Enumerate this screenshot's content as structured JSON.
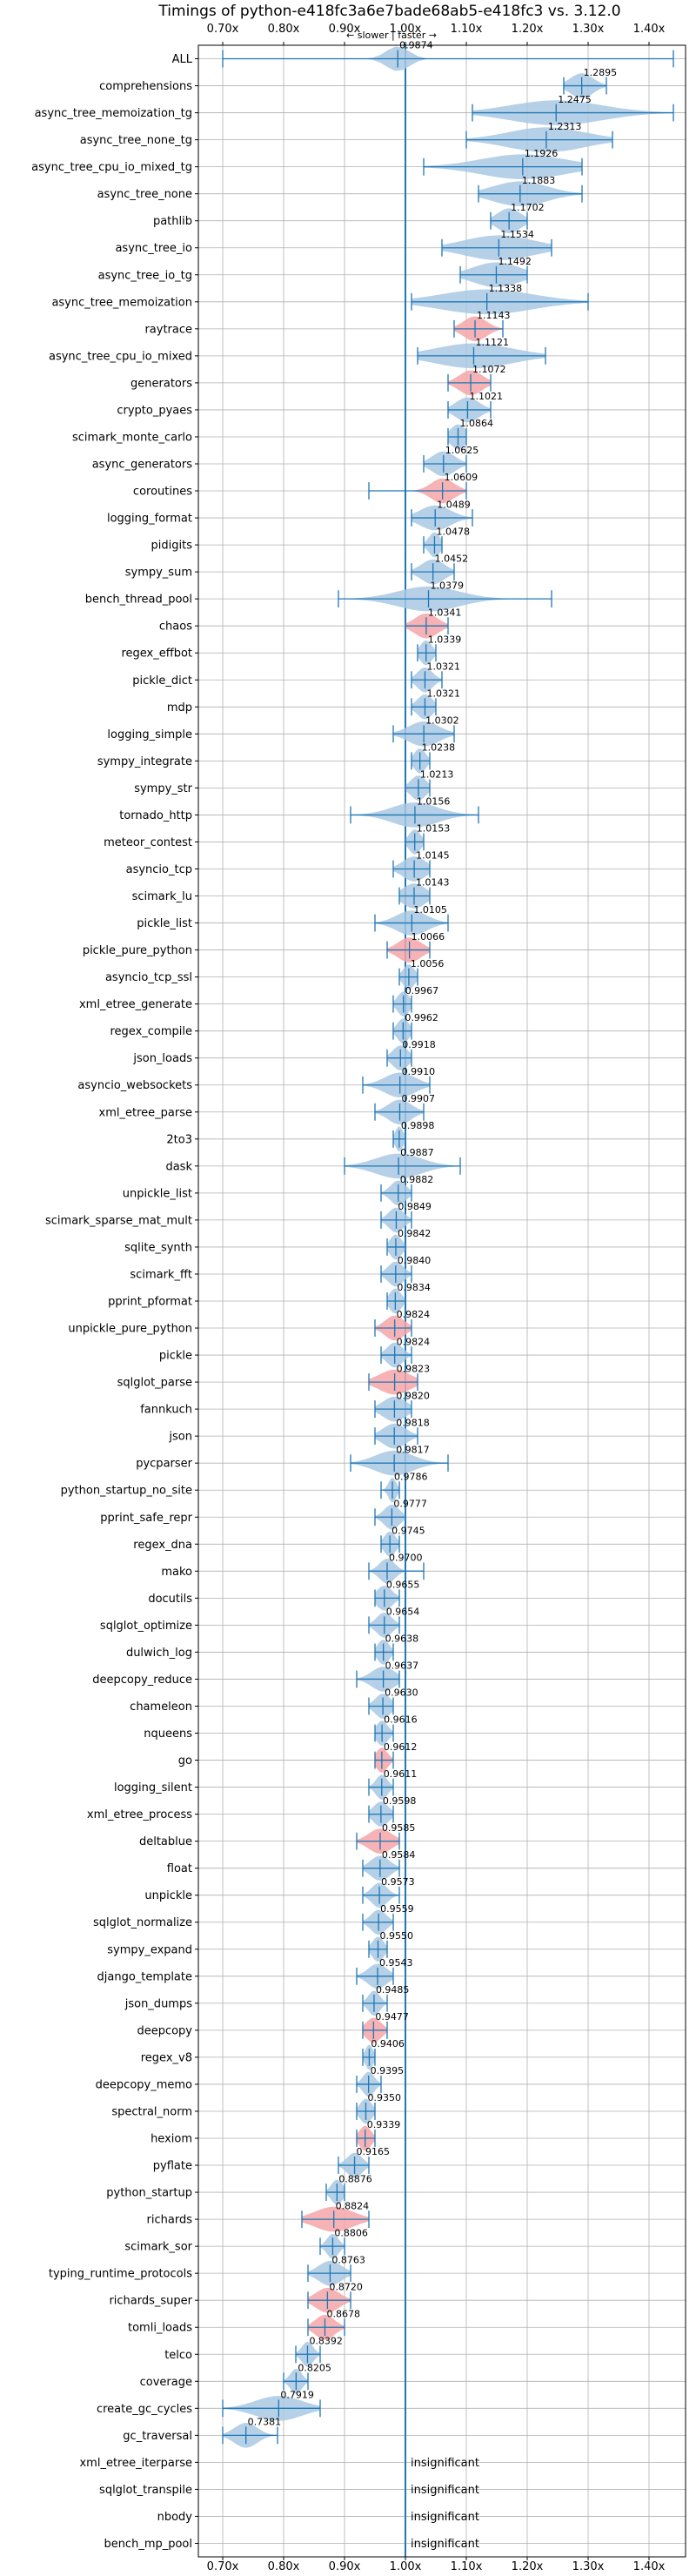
{
  "chart_data": {
    "type": "violin",
    "title": "Timings of python-e418fc3a6e7bade68ab5-e418fc3 vs. 3.12.0",
    "direction_label": "← slower | faster →",
    "xlim": [
      0.66,
      1.46
    ],
    "xticks": [
      0.7,
      0.8,
      0.9,
      1.0,
      1.1,
      1.2,
      1.3,
      1.4
    ],
    "xtick_labels": [
      "0.70x",
      "0.80x",
      "0.90x",
      "1.00x",
      "1.10x",
      "1.20x",
      "1.30x",
      "1.40x"
    ],
    "reference_line": 1.0,
    "insignificant_label": "insignificant",
    "colors": {
      "normal": "#a8c8e3",
      "highlight": "#f4a4a8",
      "line": "#1f77b4"
    },
    "benchmarks": [
      {
        "name": "ALL",
        "value": 0.9874,
        "min": 0.7,
        "max": 1.44,
        "spread": 0.03,
        "color": "normal"
      },
      {
        "name": "comprehensions",
        "value": 1.2895,
        "min": 1.26,
        "max": 1.33,
        "spread": 0.03,
        "color": "normal"
      },
      {
        "name": "async_tree_memoization_tg",
        "value": 1.2475,
        "min": 1.11,
        "max": 1.44,
        "spread": 0.12,
        "color": "normal"
      },
      {
        "name": "async_tree_none_tg",
        "value": 1.2313,
        "min": 1.1,
        "max": 1.34,
        "spread": 0.1,
        "color": "normal"
      },
      {
        "name": "async_tree_cpu_io_mixed_tg",
        "value": 1.1926,
        "min": 1.03,
        "max": 1.29,
        "spread": 0.11,
        "color": "normal"
      },
      {
        "name": "async_tree_none",
        "value": 1.1883,
        "min": 1.12,
        "max": 1.29,
        "spread": 0.07,
        "color": "normal"
      },
      {
        "name": "pathlib",
        "value": 1.1702,
        "min": 1.14,
        "max": 1.2,
        "spread": 0.03,
        "color": "normal"
      },
      {
        "name": "async_tree_io",
        "value": 1.1534,
        "min": 1.06,
        "max": 1.24,
        "spread": 0.09,
        "color": "normal"
      },
      {
        "name": "async_tree_io_tg",
        "value": 1.1492,
        "min": 1.09,
        "max": 1.2,
        "spread": 0.06,
        "color": "normal"
      },
      {
        "name": "async_tree_memoization",
        "value": 1.1338,
        "min": 1.01,
        "max": 1.3,
        "spread": 0.12,
        "color": "normal"
      },
      {
        "name": "raytrace",
        "value": 1.1143,
        "min": 1.08,
        "max": 1.16,
        "spread": 0.03,
        "color": "highlight"
      },
      {
        "name": "async_tree_cpu_io_mixed",
        "value": 1.1121,
        "min": 1.02,
        "max": 1.23,
        "spread": 0.1,
        "color": "normal"
      },
      {
        "name": "generators",
        "value": 1.1072,
        "min": 1.07,
        "max": 1.14,
        "spread": 0.03,
        "color": "highlight"
      },
      {
        "name": "crypto_pyaes",
        "value": 1.1021,
        "min": 1.07,
        "max": 1.14,
        "spread": 0.03,
        "color": "normal"
      },
      {
        "name": "scimark_monte_carlo",
        "value": 1.0864,
        "min": 1.07,
        "max": 1.1,
        "spread": 0.02,
        "color": "normal"
      },
      {
        "name": "async_generators",
        "value": 1.0625,
        "min": 1.03,
        "max": 1.1,
        "spread": 0.03,
        "color": "normal"
      },
      {
        "name": "coroutines",
        "value": 1.0609,
        "min": 0.94,
        "max": 1.1,
        "spread": 0.03,
        "color": "highlight"
      },
      {
        "name": "logging_format",
        "value": 1.0489,
        "min": 1.01,
        "max": 1.11,
        "spread": 0.04,
        "color": "normal"
      },
      {
        "name": "pidigits",
        "value": 1.0478,
        "min": 1.03,
        "max": 1.06,
        "spread": 0.015,
        "color": "normal"
      },
      {
        "name": "sympy_sum",
        "value": 1.0452,
        "min": 1.01,
        "max": 1.08,
        "spread": 0.03,
        "color": "normal"
      },
      {
        "name": "bench_thread_pool",
        "value": 1.0379,
        "min": 0.89,
        "max": 1.24,
        "spread": 0.08,
        "color": "normal"
      },
      {
        "name": "chaos",
        "value": 1.0341,
        "min": 1.0,
        "max": 1.07,
        "spread": 0.03,
        "color": "highlight"
      },
      {
        "name": "regex_effbot",
        "value": 1.0339,
        "min": 1.02,
        "max": 1.05,
        "spread": 0.015,
        "color": "normal"
      },
      {
        "name": "pickle_dict",
        "value": 1.0321,
        "min": 1.01,
        "max": 1.06,
        "spread": 0.02,
        "color": "normal"
      },
      {
        "name": "mdp",
        "value": 1.0321,
        "min": 1.01,
        "max": 1.05,
        "spread": 0.02,
        "color": "normal"
      },
      {
        "name": "logging_simple",
        "value": 1.0302,
        "min": 0.98,
        "max": 1.08,
        "spread": 0.04,
        "color": "normal"
      },
      {
        "name": "sympy_integrate",
        "value": 1.0238,
        "min": 1.01,
        "max": 1.04,
        "spread": 0.015,
        "color": "normal"
      },
      {
        "name": "sympy_str",
        "value": 1.0213,
        "min": 1.0,
        "max": 1.04,
        "spread": 0.02,
        "color": "normal"
      },
      {
        "name": "tornado_http",
        "value": 1.0156,
        "min": 0.91,
        "max": 1.12,
        "spread": 0.06,
        "color": "normal"
      },
      {
        "name": "meteor_contest",
        "value": 1.0153,
        "min": 1.0,
        "max": 1.03,
        "spread": 0.015,
        "color": "normal"
      },
      {
        "name": "asyncio_tcp",
        "value": 1.0145,
        "min": 0.98,
        "max": 1.04,
        "spread": 0.03,
        "color": "normal"
      },
      {
        "name": "scimark_lu",
        "value": 1.0143,
        "min": 0.99,
        "max": 1.04,
        "spread": 0.03,
        "color": "normal"
      },
      {
        "name": "pickle_list",
        "value": 1.0105,
        "min": 0.95,
        "max": 1.07,
        "spread": 0.04,
        "color": "normal"
      },
      {
        "name": "pickle_pure_python",
        "value": 1.0066,
        "min": 0.97,
        "max": 1.04,
        "spread": 0.03,
        "color": "highlight"
      },
      {
        "name": "asyncio_tcp_ssl",
        "value": 1.0056,
        "min": 0.99,
        "max": 1.02,
        "spread": 0.015,
        "color": "normal"
      },
      {
        "name": "xml_etree_generate",
        "value": 0.9967,
        "min": 0.98,
        "max": 1.01,
        "spread": 0.015,
        "color": "normal"
      },
      {
        "name": "regex_compile",
        "value": 0.9962,
        "min": 0.98,
        "max": 1.01,
        "spread": 0.015,
        "color": "normal"
      },
      {
        "name": "json_loads",
        "value": 0.9918,
        "min": 0.97,
        "max": 1.01,
        "spread": 0.02,
        "color": "normal"
      },
      {
        "name": "asyncio_websockets",
        "value": 0.991,
        "min": 0.93,
        "max": 1.04,
        "spread": 0.04,
        "color": "normal"
      },
      {
        "name": "xml_etree_parse",
        "value": 0.9907,
        "min": 0.95,
        "max": 1.03,
        "spread": 0.03,
        "color": "normal"
      },
      {
        "name": "2to3",
        "value": 0.9898,
        "min": 0.98,
        "max": 1.0,
        "spread": 0.01,
        "color": "normal"
      },
      {
        "name": "dask",
        "value": 0.9887,
        "min": 0.9,
        "max": 1.09,
        "spread": 0.06,
        "color": "normal"
      },
      {
        "name": "unpickle_list",
        "value": 0.9882,
        "min": 0.96,
        "max": 1.01,
        "spread": 0.02,
        "color": "normal"
      },
      {
        "name": "scimark_sparse_mat_mult",
        "value": 0.9849,
        "min": 0.96,
        "max": 1.01,
        "spread": 0.02,
        "color": "normal"
      },
      {
        "name": "sqlite_synth",
        "value": 0.9842,
        "min": 0.97,
        "max": 1.0,
        "spread": 0.015,
        "color": "normal"
      },
      {
        "name": "scimark_fft",
        "value": 0.984,
        "min": 0.96,
        "max": 1.01,
        "spread": 0.02,
        "color": "normal"
      },
      {
        "name": "pprint_pformat",
        "value": 0.9834,
        "min": 0.97,
        "max": 1.0,
        "spread": 0.015,
        "color": "normal"
      },
      {
        "name": "unpickle_pure_python",
        "value": 0.9824,
        "min": 0.95,
        "max": 1.01,
        "spread": 0.025,
        "color": "highlight"
      },
      {
        "name": "pickle",
        "value": 0.9824,
        "min": 0.96,
        "max": 1.01,
        "spread": 0.02,
        "color": "normal"
      },
      {
        "name": "sqlglot_parse",
        "value": 0.9823,
        "min": 0.94,
        "max": 1.02,
        "spread": 0.04,
        "color": "highlight"
      },
      {
        "name": "fannkuch",
        "value": 0.982,
        "min": 0.95,
        "max": 1.01,
        "spread": 0.03,
        "color": "normal"
      },
      {
        "name": "json",
        "value": 0.9818,
        "min": 0.95,
        "max": 1.02,
        "spread": 0.03,
        "color": "normal"
      },
      {
        "name": "pycparser",
        "value": 0.9817,
        "min": 0.91,
        "max": 1.07,
        "spread": 0.05,
        "color": "normal"
      },
      {
        "name": "python_startup_no_site",
        "value": 0.9786,
        "min": 0.96,
        "max": 0.99,
        "spread": 0.01,
        "color": "normal"
      },
      {
        "name": "pprint_safe_repr",
        "value": 0.9777,
        "min": 0.95,
        "max": 1.0,
        "spread": 0.02,
        "color": "normal"
      },
      {
        "name": "regex_dna",
        "value": 0.9745,
        "min": 0.96,
        "max": 0.99,
        "spread": 0.015,
        "color": "normal"
      },
      {
        "name": "mako",
        "value": 0.97,
        "min": 0.94,
        "max": 1.03,
        "spread": 0.02,
        "color": "normal"
      },
      {
        "name": "docutils",
        "value": 0.9655,
        "min": 0.95,
        "max": 0.99,
        "spread": 0.02,
        "color": "normal"
      },
      {
        "name": "sqlglot_optimize",
        "value": 0.9654,
        "min": 0.94,
        "max": 0.99,
        "spread": 0.02,
        "color": "normal"
      },
      {
        "name": "dulwich_log",
        "value": 0.9638,
        "min": 0.95,
        "max": 0.98,
        "spread": 0.015,
        "color": "normal"
      },
      {
        "name": "deepcopy_reduce",
        "value": 0.9637,
        "min": 0.92,
        "max": 0.99,
        "spread": 0.03,
        "color": "normal"
      },
      {
        "name": "chameleon",
        "value": 0.963,
        "min": 0.94,
        "max": 0.98,
        "spread": 0.02,
        "color": "normal"
      },
      {
        "name": "nqueens",
        "value": 0.9616,
        "min": 0.95,
        "max": 0.98,
        "spread": 0.015,
        "color": "normal"
      },
      {
        "name": "go",
        "value": 0.9612,
        "min": 0.95,
        "max": 0.98,
        "spread": 0.015,
        "color": "highlight"
      },
      {
        "name": "logging_silent",
        "value": 0.9611,
        "min": 0.94,
        "max": 0.98,
        "spread": 0.015,
        "color": "normal"
      },
      {
        "name": "xml_etree_process",
        "value": 0.9598,
        "min": 0.94,
        "max": 0.98,
        "spread": 0.02,
        "color": "normal"
      },
      {
        "name": "deltablue",
        "value": 0.9585,
        "min": 0.92,
        "max": 0.99,
        "spread": 0.03,
        "color": "highlight"
      },
      {
        "name": "float",
        "value": 0.9584,
        "min": 0.93,
        "max": 0.99,
        "spread": 0.025,
        "color": "normal"
      },
      {
        "name": "unpickle",
        "value": 0.9573,
        "min": 0.93,
        "max": 0.99,
        "spread": 0.02,
        "color": "normal"
      },
      {
        "name": "sqlglot_normalize",
        "value": 0.9559,
        "min": 0.93,
        "max": 0.98,
        "spread": 0.02,
        "color": "normal"
      },
      {
        "name": "sympy_expand",
        "value": 0.955,
        "min": 0.94,
        "max": 0.97,
        "spread": 0.015,
        "color": "normal"
      },
      {
        "name": "django_template",
        "value": 0.9543,
        "min": 0.92,
        "max": 0.98,
        "spread": 0.025,
        "color": "normal"
      },
      {
        "name": "json_dumps",
        "value": 0.9485,
        "min": 0.93,
        "max": 0.97,
        "spread": 0.015,
        "color": "normal"
      },
      {
        "name": "deepcopy",
        "value": 0.9477,
        "min": 0.93,
        "max": 0.97,
        "spread": 0.02,
        "color": "highlight"
      },
      {
        "name": "regex_v8",
        "value": 0.9406,
        "min": 0.93,
        "max": 0.95,
        "spread": 0.01,
        "color": "normal"
      },
      {
        "name": "deepcopy_memo",
        "value": 0.9395,
        "min": 0.92,
        "max": 0.96,
        "spread": 0.015,
        "color": "normal"
      },
      {
        "name": "spectral_norm",
        "value": 0.935,
        "min": 0.92,
        "max": 0.95,
        "spread": 0.015,
        "color": "normal"
      },
      {
        "name": "hexiom",
        "value": 0.9339,
        "min": 0.92,
        "max": 0.95,
        "spread": 0.015,
        "color": "highlight"
      },
      {
        "name": "pyflate",
        "value": 0.9165,
        "min": 0.89,
        "max": 0.94,
        "spread": 0.02,
        "color": "normal"
      },
      {
        "name": "python_startup",
        "value": 0.8876,
        "min": 0.87,
        "max": 0.9,
        "spread": 0.015,
        "color": "normal"
      },
      {
        "name": "richards",
        "value": 0.8824,
        "min": 0.83,
        "max": 0.94,
        "spread": 0.05,
        "color": "highlight"
      },
      {
        "name": "scimark_sor",
        "value": 0.8806,
        "min": 0.86,
        "max": 0.9,
        "spread": 0.015,
        "color": "normal"
      },
      {
        "name": "typing_runtime_protocols",
        "value": 0.8763,
        "min": 0.84,
        "max": 0.91,
        "spread": 0.03,
        "color": "normal"
      },
      {
        "name": "richards_super",
        "value": 0.872,
        "min": 0.84,
        "max": 0.91,
        "spread": 0.03,
        "color": "highlight"
      },
      {
        "name": "tomli_loads",
        "value": 0.8678,
        "min": 0.84,
        "max": 0.9,
        "spread": 0.025,
        "color": "highlight"
      },
      {
        "name": "telco",
        "value": 0.8392,
        "min": 0.82,
        "max": 0.86,
        "spread": 0.015,
        "color": "normal"
      },
      {
        "name": "coverage",
        "value": 0.8205,
        "min": 0.8,
        "max": 0.84,
        "spread": 0.015,
        "color": "normal"
      },
      {
        "name": "create_gc_cycles",
        "value": 0.7919,
        "min": 0.7,
        "max": 0.86,
        "spread": 0.06,
        "color": "normal"
      },
      {
        "name": "gc_traversal",
        "value": 0.7381,
        "min": 0.7,
        "max": 0.79,
        "spread": 0.03,
        "color": "normal"
      },
      {
        "name": "xml_etree_iterparse",
        "value": null,
        "insignificant": true
      },
      {
        "name": "sqlglot_transpile",
        "value": null,
        "insignificant": true
      },
      {
        "name": "nbody",
        "value": null,
        "insignificant": true
      },
      {
        "name": "bench_mp_pool",
        "value": null,
        "insignificant": true
      }
    ]
  }
}
